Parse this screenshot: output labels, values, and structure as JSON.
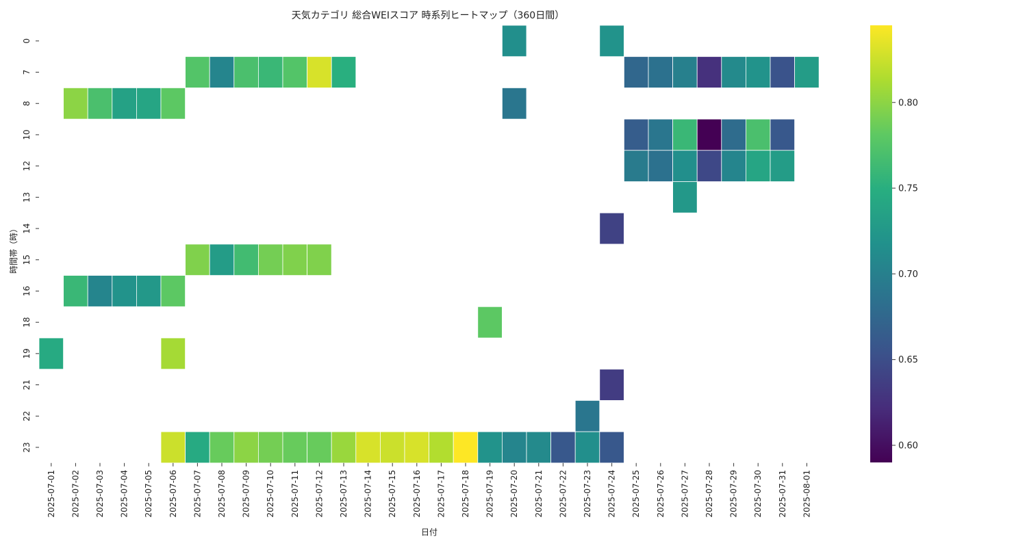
{
  "chart_data": {
    "type": "heatmap",
    "title": "天気カテゴリ 総合WEIスコア 時系列ヒートマップ（360日間）",
    "xlabel": "日付",
    "ylabel": "時間帯（時）",
    "x_categories": [
      "2025-07-01",
      "2025-07-02",
      "2025-07-03",
      "2025-07-04",
      "2025-07-05",
      "2025-07-06",
      "2025-07-07",
      "2025-07-08",
      "2025-07-09",
      "2025-07-10",
      "2025-07-11",
      "2025-07-12",
      "2025-07-13",
      "2025-07-14",
      "2025-07-15",
      "2025-07-16",
      "2025-07-17",
      "2025-07-18",
      "2025-07-19",
      "2025-07-20",
      "2025-07-21",
      "2025-07-22",
      "2025-07-23",
      "2025-07-24",
      "2025-07-25",
      "2025-07-26",
      "2025-07-27",
      "2025-07-28",
      "2025-07-29",
      "2025-07-30",
      "2025-07-31",
      "2025-08-01"
    ],
    "y_categories": [
      "0",
      "7",
      "8",
      "10",
      "12",
      "13",
      "14",
      "15",
      "16",
      "18",
      "19",
      "21",
      "22",
      "23"
    ],
    "colormap": "viridis",
    "color_range": [
      0.59,
      0.845
    ],
    "colorbar_ticks": [
      "0.60",
      "0.65",
      "0.70",
      "0.75",
      "0.80"
    ],
    "grid": false,
    "values": [
      [
        null,
        null,
        null,
        null,
        null,
        null,
        null,
        null,
        null,
        null,
        null,
        null,
        null,
        null,
        null,
        null,
        null,
        null,
        null,
        0.715,
        null,
        null,
        null,
        0.72,
        null,
        null,
        null,
        null,
        null,
        null,
        null,
        null
      ],
      [
        null,
        null,
        null,
        null,
        null,
        null,
        0.775,
        0.705,
        0.77,
        0.76,
        0.775,
        0.83,
        0.75,
        null,
        null,
        null,
        null,
        null,
        null,
        null,
        null,
        null,
        null,
        null,
        0.675,
        0.685,
        0.7,
        0.625,
        0.71,
        0.72,
        0.655,
        0.73
      ],
      [
        null,
        0.8,
        0.77,
        0.735,
        0.74,
        0.78,
        null,
        null,
        null,
        null,
        null,
        null,
        null,
        null,
        null,
        null,
        null,
        null,
        null,
        0.69,
        null,
        null,
        null,
        null,
        null,
        null,
        null,
        null,
        null,
        null,
        null,
        null
      ],
      [
        null,
        null,
        null,
        null,
        null,
        null,
        null,
        null,
        null,
        null,
        null,
        null,
        null,
        null,
        null,
        null,
        null,
        null,
        null,
        null,
        null,
        null,
        null,
        null,
        0.665,
        0.69,
        0.76,
        0.59,
        0.68,
        0.77,
        0.66,
        null
      ],
      [
        null,
        null,
        null,
        null,
        null,
        null,
        null,
        null,
        null,
        null,
        null,
        null,
        null,
        null,
        null,
        null,
        null,
        null,
        null,
        null,
        null,
        null,
        null,
        null,
        0.695,
        0.685,
        0.715,
        0.645,
        0.705,
        0.74,
        0.73,
        null
      ],
      [
        null,
        null,
        null,
        null,
        null,
        null,
        null,
        null,
        null,
        null,
        null,
        null,
        null,
        null,
        null,
        null,
        null,
        null,
        null,
        null,
        null,
        null,
        null,
        null,
        null,
        null,
        0.725,
        null,
        null,
        null,
        null,
        null
      ],
      [
        null,
        null,
        null,
        null,
        null,
        null,
        null,
        null,
        null,
        null,
        null,
        null,
        null,
        null,
        null,
        null,
        null,
        null,
        null,
        null,
        null,
        null,
        null,
        0.64,
        null,
        null,
        null,
        null,
        null,
        null,
        null,
        null
      ],
      [
        null,
        null,
        null,
        null,
        null,
        null,
        0.795,
        0.73,
        0.765,
        0.79,
        0.795,
        0.795,
        null,
        null,
        null,
        null,
        null,
        null,
        null,
        null,
        null,
        null,
        null,
        null,
        null,
        null,
        null,
        null,
        null,
        null,
        null,
        null
      ],
      [
        null,
        0.76,
        0.705,
        0.72,
        0.725,
        0.78,
        null,
        null,
        null,
        null,
        null,
        null,
        null,
        null,
        null,
        null,
        null,
        null,
        null,
        null,
        null,
        null,
        null,
        null,
        null,
        null,
        null,
        null,
        null,
        null,
        null,
        null
      ],
      [
        null,
        null,
        null,
        null,
        null,
        null,
        null,
        null,
        null,
        null,
        null,
        null,
        null,
        null,
        null,
        null,
        null,
        null,
        0.78,
        null,
        null,
        null,
        null,
        null,
        null,
        null,
        null,
        null,
        null,
        null,
        null,
        null
      ],
      [
        0.745,
        null,
        null,
        null,
        null,
        0.81,
        null,
        null,
        null,
        null,
        null,
        null,
        null,
        null,
        null,
        null,
        null,
        null,
        null,
        null,
        null,
        null,
        null,
        null,
        null,
        null,
        null,
        null,
        null,
        null,
        null,
        null
      ],
      [
        null,
        null,
        null,
        null,
        null,
        null,
        null,
        null,
        null,
        null,
        null,
        null,
        null,
        null,
        null,
        null,
        null,
        null,
        null,
        null,
        null,
        null,
        null,
        0.635,
        null,
        null,
        null,
        null,
        null,
        null,
        null,
        null
      ],
      [
        null,
        null,
        null,
        null,
        null,
        null,
        null,
        null,
        null,
        null,
        null,
        null,
        null,
        null,
        null,
        null,
        null,
        null,
        null,
        null,
        null,
        null,
        0.69,
        null,
        null,
        null,
        null,
        null,
        null,
        null,
        null,
        null
      ],
      [
        null,
        null,
        null,
        null,
        null,
        0.825,
        0.745,
        0.785,
        0.8,
        0.79,
        0.785,
        0.785,
        0.805,
        0.83,
        0.825,
        0.83,
        0.815,
        0.845,
        0.72,
        0.705,
        0.71,
        0.66,
        0.715,
        0.66,
        null,
        null,
        null,
        null,
        null,
        null,
        null,
        null
      ]
    ]
  }
}
